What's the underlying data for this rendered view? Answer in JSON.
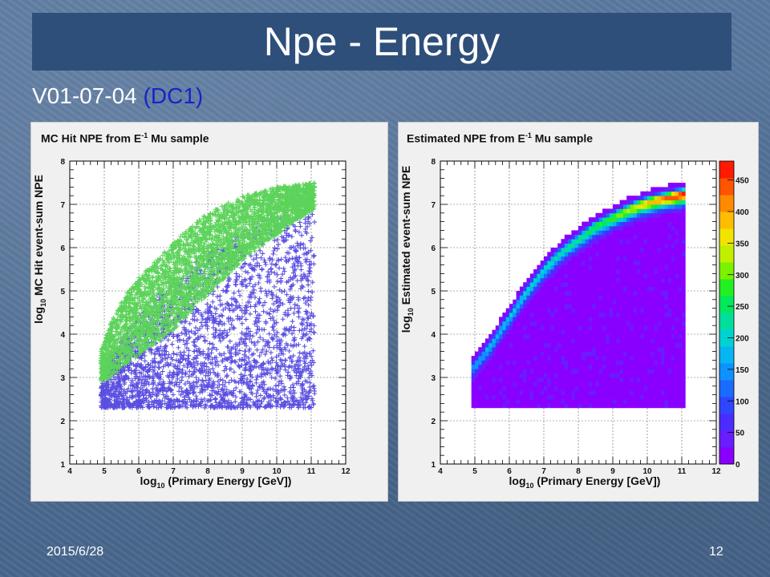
{
  "slide": {
    "title": "Npe - Energy",
    "subtitle_main": "V01-07-04 ",
    "subtitle_accent": "(DC1)",
    "date": "2015/6/28",
    "page_number": "12"
  },
  "chart_data": [
    {
      "type": "scatter",
      "title_prefix": "MC Hit NPE from E",
      "title_sup": "-1",
      "title_suffix": " Mu sample",
      "xlabel": "log10 (Primary Energy [GeV])",
      "ylabel": "log10 MC Hit event-sum NPE",
      "xlim": [
        4,
        12
      ],
      "ylim": [
        1,
        8
      ],
      "xticks": [
        "4",
        "5",
        "6",
        "7",
        "8",
        "9",
        "10",
        "11",
        "12"
      ],
      "yticks": [
        "1",
        "2",
        "3",
        "4",
        "5",
        "6",
        "7",
        "8"
      ],
      "grid": true,
      "marker": "+",
      "series": [
        {
          "color": "#5a4fe0",
          "region": {
            "x": [
              4.9,
              5.5,
              6.5,
              7.5,
              8.5,
              9.5,
              10.5,
              11.1
            ],
            "y_low": [
              2.3,
              2.3,
              2.3,
              2.3,
              2.3,
              2.3,
              2.3,
              2.3
            ],
            "y_high": [
              3.1,
              3.9,
              4.9,
              5.6,
              6.1,
              6.6,
              6.9,
              7.0
            ]
          }
        },
        {
          "color": "#5cd35a",
          "region": {
            "x": [
              4.9,
              5.2,
              5.6,
              6.0,
              6.5,
              7.0,
              7.5,
              8.0,
              8.5,
              9.0,
              9.5,
              10.0,
              10.5,
              11.1
            ],
            "y_low": [
              2.9,
              3.0,
              3.3,
              3.5,
              3.8,
              4.1,
              4.5,
              4.9,
              5.3,
              5.7,
              6.0,
              6.3,
              6.6,
              6.9
            ],
            "y_high": [
              3.6,
              4.3,
              4.9,
              5.3,
              5.7,
              6.1,
              6.5,
              6.8,
              7.0,
              7.2,
              7.3,
              7.4,
              7.45,
              7.5
            ]
          }
        }
      ]
    },
    {
      "type": "heatmap",
      "title_prefix": "Estimated NPE from E",
      "title_sup": "-1",
      "title_suffix": " Mu sample",
      "xlabel": "log10 (Primary Energy [GeV])",
      "ylabel": "log10 Estimated event-sum NPE",
      "xlim": [
        4,
        12
      ],
      "ylim": [
        1,
        8
      ],
      "xticks": [
        "4",
        "5",
        "6",
        "7",
        "8",
        "9",
        "10",
        "11",
        "12"
      ],
      "yticks": [
        "1",
        "2",
        "3",
        "4",
        "5",
        "6",
        "7",
        "8"
      ],
      "grid": true,
      "x_range": [
        4.9,
        11.1
      ],
      "y_floor": 2.3,
      "band_ridge": {
        "x": [
          4.9,
          5.5,
          6.0,
          6.5,
          7.0,
          7.5,
          8.0,
          8.5,
          9.0,
          9.5,
          10.0,
          10.5,
          11.1
        ],
        "y": [
          3.2,
          3.8,
          4.4,
          5.0,
          5.5,
          5.9,
          6.2,
          6.5,
          6.7,
          6.9,
          7.05,
          7.15,
          7.25
        ]
      },
      "band_peak": {
        "x": [
          4.9,
          6.0,
          7.0,
          8.0,
          9.0,
          10.0,
          11.1
        ],
        "z": [
          150,
          180,
          200,
          230,
          280,
          380,
          470
        ]
      },
      "colorbar": {
        "zlim": [
          0,
          480
        ],
        "ticks": [
          "0",
          "50",
          "100",
          "150",
          "200",
          "250",
          "300",
          "350",
          "400",
          "450"
        ],
        "colors": [
          "#8a00ff",
          "#6a1dff",
          "#4b2cff",
          "#2f46ff",
          "#1a6bff",
          "#0e92ff",
          "#06b5f2",
          "#00d2d0",
          "#00e09c",
          "#00e85c",
          "#22f022",
          "#7af200",
          "#c0f000",
          "#f0e400",
          "#ffbc00",
          "#ff8a00",
          "#ff5400",
          "#ff1a00"
        ]
      }
    }
  ]
}
